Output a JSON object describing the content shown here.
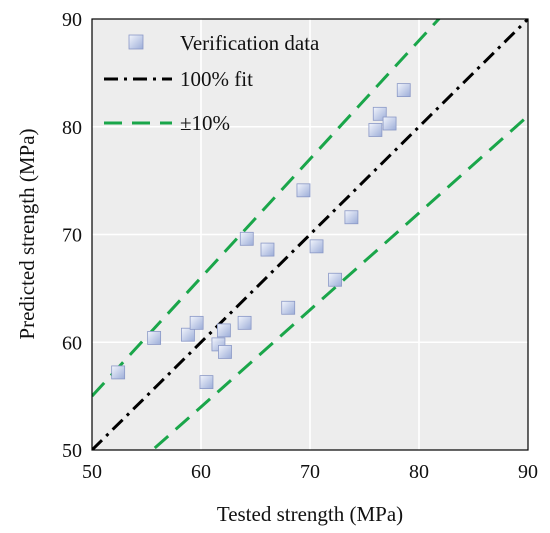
{
  "chart_data": {
    "type": "scatter",
    "title": "",
    "xlabel": "Tested strength (MPa)",
    "ylabel": "Predicted strength (MPa)",
    "xlim": [
      50,
      90
    ],
    "ylim": [
      50,
      90
    ],
    "xticks": [
      50,
      60,
      70,
      80,
      90
    ],
    "yticks": [
      50,
      60,
      70,
      80,
      90
    ],
    "grid": true,
    "legend_position": "top-left",
    "series": [
      {
        "name": "Verification data",
        "kind": "scatter",
        "marker": "square",
        "color": "#a9b8e0",
        "points": [
          [
            52.4,
            57.2
          ],
          [
            55.7,
            60.4
          ],
          [
            58.8,
            60.7
          ],
          [
            59.6,
            61.8
          ],
          [
            60.5,
            56.3
          ],
          [
            61.6,
            59.8
          ],
          [
            62.1,
            61.1
          ],
          [
            62.2,
            59.1
          ],
          [
            64.0,
            61.8
          ],
          [
            64.2,
            69.6
          ],
          [
            66.1,
            68.6
          ],
          [
            68.0,
            63.2
          ],
          [
            69.4,
            74.1
          ],
          [
            70.6,
            68.9
          ],
          [
            72.3,
            65.8
          ],
          [
            73.8,
            71.6
          ],
          [
            76.0,
            79.7
          ],
          [
            76.4,
            81.2
          ],
          [
            77.3,
            80.3
          ],
          [
            78.6,
            83.4
          ]
        ]
      },
      {
        "name": "100% fit",
        "kind": "line",
        "style": "dash-dot",
        "color": "#000000",
        "points": [
          [
            50,
            50
          ],
          [
            90,
            90
          ]
        ]
      },
      {
        "name": "±10%",
        "kind": "line",
        "style": "dashed",
        "color": "#1aa64a",
        "points": [
          [
            50,
            55
          ],
          [
            90,
            99
          ]
        ]
      },
      {
        "name": "",
        "kind": "line",
        "style": "dashed",
        "color": "#1aa64a",
        "points": [
          [
            50,
            45
          ],
          [
            90,
            81
          ]
        ]
      }
    ]
  }
}
